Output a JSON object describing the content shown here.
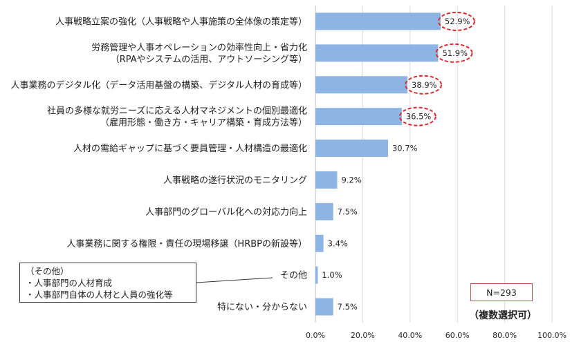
{
  "chart_data": {
    "type": "bar",
    "orientation": "horizontal",
    "categories": [
      [
        "人事戦略立案の強化（人事戦略や人事施策の全体像の策定等）"
      ],
      [
        "労務管理や人事オペレーションの効率性向上・省力化",
        "（RPAやシステムの活用、アウトソーシング等）"
      ],
      [
        "人事業務のデジタル化（データ活用基盤の構築、デジタル人材の育成等）"
      ],
      [
        "社員の多様な就労ニーズに応える人材マネジメントの個別最適化",
        "（雇用形態・働き方・キャリア構築・育成方法等）"
      ],
      [
        "人材の需給ギャップに基づく要員管理・人材構造の最適化"
      ],
      [
        "人事戦略の遂行状況のモニタリング"
      ],
      [
        "人事部門のグローバル化への対応力向上"
      ],
      [
        "人事業務に関する権限・責任の現場移譲（HRBPの新設等）"
      ],
      [
        "その他"
      ],
      [
        "特にない・分からない"
      ]
    ],
    "values": [
      52.9,
      51.9,
      38.9,
      36.5,
      30.7,
      9.2,
      7.5,
      3.4,
      1.0,
      7.5
    ],
    "value_labels": [
      "52.9%",
      "51.9%",
      "38.9%",
      "36.5%",
      "30.7%",
      "9.2%",
      "7.5%",
      "3.4%",
      "1.0%",
      "7.5%"
    ],
    "highlighted": [
      true,
      true,
      true,
      true,
      false,
      false,
      false,
      false,
      false,
      false
    ],
    "xlim": [
      0,
      100
    ],
    "xticks": [
      "0.0%",
      "20.0%",
      "40.0%",
      "60.0%",
      "80.0%",
      "100.0%"
    ],
    "grid": "vertical",
    "bar_color": "#8db4e2",
    "highlight_color": "#e0282e"
  },
  "annotations": {
    "sample_size": "N=293",
    "multiple_choice": "（複数選択可）",
    "other_note_lines": [
      "（その他）",
      "・人事部門の人材育成",
      "・人事部門自体の人材と人員の強化等"
    ]
  }
}
